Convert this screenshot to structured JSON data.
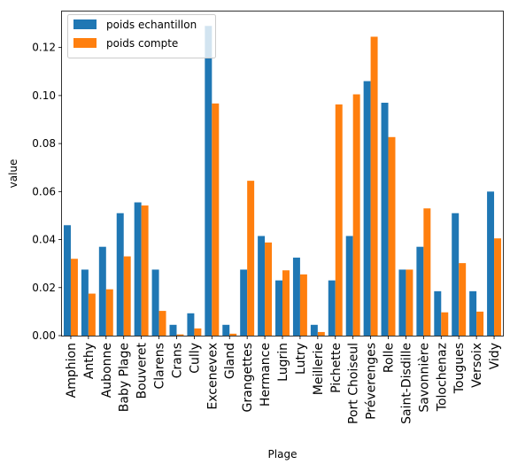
{
  "chart_data": {
    "type": "bar",
    "xlabel": "Plage",
    "ylabel": "value",
    "ylim": [
      0,
      0.135
    ],
    "yticks": [
      0.0,
      0.02,
      0.04,
      0.06,
      0.08,
      0.1,
      0.12
    ],
    "ytick_labels": [
      "0.00",
      "0.02",
      "0.04",
      "0.06",
      "0.08",
      "0.10",
      "0.12"
    ],
    "grid": false,
    "legend_position": "top-left",
    "categories": [
      "Amphion",
      "Anthy",
      "Aubonne",
      "Baby Plage",
      "Bouveret",
      "Clarens",
      "Crans",
      "Cully",
      "Excenevex",
      "Gland",
      "Grangettes",
      "Hermance",
      "Lugrin",
      "Lutry",
      "Meillerie",
      "Pichette",
      "Port Choiseul",
      "Préverenges",
      "Rolle",
      "Saint-Disdille",
      "Savonnière",
      "Tolochenaz",
      "Tougues",
      "Versoix",
      "Vidy"
    ],
    "series": [
      {
        "name": "poids echantillon",
        "color": "#1f77b4",
        "values": [
          0.046,
          0.0275,
          0.037,
          0.051,
          0.0555,
          0.0275,
          0.0045,
          0.0093,
          0.129,
          0.0045,
          0.0275,
          0.0415,
          0.023,
          0.0325,
          0.0045,
          0.023,
          0.0415,
          0.106,
          0.097,
          0.0275,
          0.037,
          0.0185,
          0.051,
          0.0185,
          0.06
        ]
      },
      {
        "name": "poids compte",
        "color": "#ff7f0e",
        "values": [
          0.032,
          0.0175,
          0.0193,
          0.033,
          0.0542,
          0.0103,
          0.0005,
          0.003,
          0.0967,
          0.0008,
          0.0645,
          0.0388,
          0.0272,
          0.0255,
          0.0015,
          0.0963,
          0.1005,
          0.1245,
          0.0827,
          0.0275,
          0.053,
          0.0097,
          0.0302,
          0.01,
          0.0405
        ]
      }
    ]
  }
}
